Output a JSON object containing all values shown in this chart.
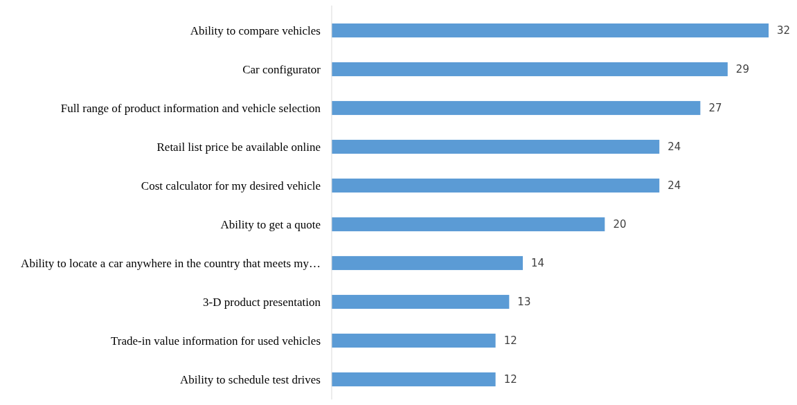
{
  "chart_data": {
    "type": "bar",
    "orientation": "horizontal",
    "categories": [
      "Ability to compare vehicles",
      "Car configurator",
      "Full range of product information and vehicle selection",
      "Retail list price be available online",
      "Cost calculator for my desired vehicle",
      "Ability to get a quote",
      "Ability to locate a car anywhere in the country that meets my…",
      "3-D product presentation",
      "Trade-in value information for used vehicles",
      "Ability to schedule test drives"
    ],
    "values": [
      32,
      29,
      27,
      24,
      24,
      20,
      14,
      13,
      12,
      12
    ],
    "color": "#5b9bd5",
    "data_labels": true
  }
}
